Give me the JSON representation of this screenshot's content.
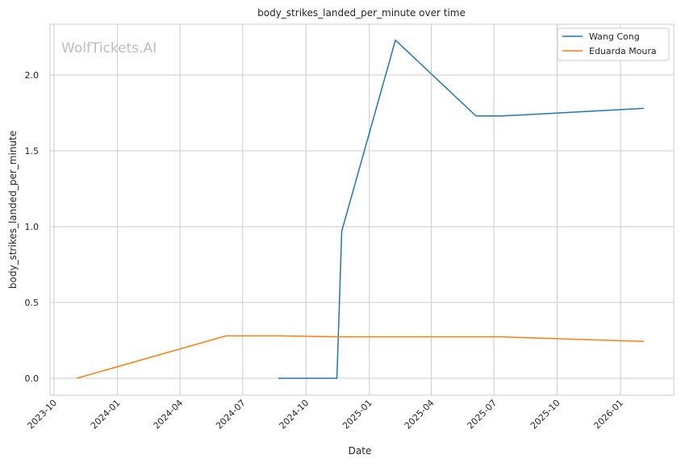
{
  "chart_data": {
    "type": "line",
    "title": "body_strikes_landed_per_minute over time",
    "xlabel": "Date",
    "ylabel": "body_strikes_landed_per_minute",
    "watermark": "WolfTickets.AI",
    "x_ticks": [
      "2023-10",
      "2024-01",
      "2024-04",
      "2024-07",
      "2024-10",
      "2025-01",
      "2025-04",
      "2025-07",
      "2025-10",
      "2026-01"
    ],
    "y_ticks": [
      "0.0",
      "0.5",
      "1.0",
      "1.5",
      "2.0"
    ],
    "ylim": [
      -0.11,
      2.33
    ],
    "xlim": [
      "2023-09-22",
      "2026-03-05"
    ],
    "grid": true,
    "legend_position": "top-right",
    "series": [
      {
        "name": "Wang Cong",
        "color": "#1f77b4",
        "points": [
          [
            "2024-08-22",
            0.0
          ],
          [
            "2024-11-15",
            0.0
          ],
          [
            "2024-11-22",
            0.97
          ],
          [
            "2025-02-08",
            2.23
          ],
          [
            "2025-06-05",
            1.73
          ],
          [
            "2025-07-13",
            1.73
          ],
          [
            "2026-02-04",
            1.78
          ]
        ]
      },
      {
        "name": "Eduarda Moura",
        "color": "#ff7f0e",
        "points": [
          [
            "2023-11-03",
            0.0
          ],
          [
            "2024-06-07",
            0.28
          ],
          [
            "2024-08-22",
            0.28
          ],
          [
            "2024-11-15",
            0.273
          ],
          [
            "2025-07-13",
            0.273
          ],
          [
            "2026-02-04",
            0.243
          ]
        ]
      }
    ]
  }
}
